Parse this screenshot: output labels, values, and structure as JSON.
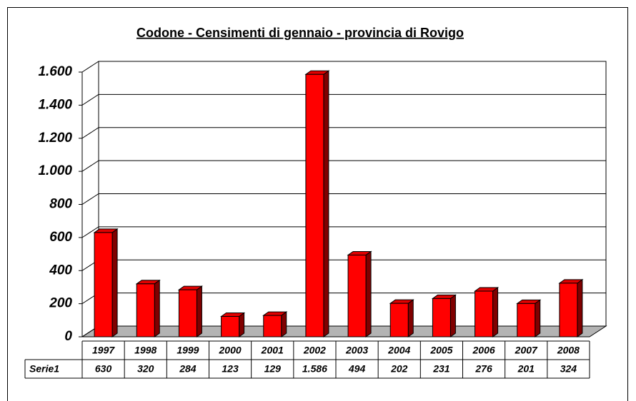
{
  "chart_data": {
    "type": "bar",
    "title": "Codone - Censimenti di gennaio - provincia di Rovigo",
    "categories": [
      "1997",
      "1998",
      "1999",
      "2000",
      "2001",
      "2002",
      "2003",
      "2004",
      "2005",
      "2006",
      "2007",
      "2008"
    ],
    "series": [
      {
        "name": "Serie1",
        "color": "#ff0000",
        "values": [
          630,
          320,
          284,
          123,
          129,
          1586,
          494,
          202,
          231,
          276,
          201,
          324
        ],
        "value_labels": [
          "630",
          "320",
          "284",
          "123",
          "129",
          "1.586",
          "494",
          "202",
          "231",
          "276",
          "201",
          "324"
        ]
      }
    ],
    "ylim": [
      0,
      1600
    ],
    "yticks": [
      0,
      200,
      400,
      600,
      800,
      {
        "value": 1000,
        "label": "1.000"
      },
      {
        "value": 1200,
        "label": "1.200"
      },
      {
        "value": 1400,
        "label": "1.400"
      },
      {
        "value": 1600,
        "label": "1.600"
      }
    ],
    "grid": true
  }
}
